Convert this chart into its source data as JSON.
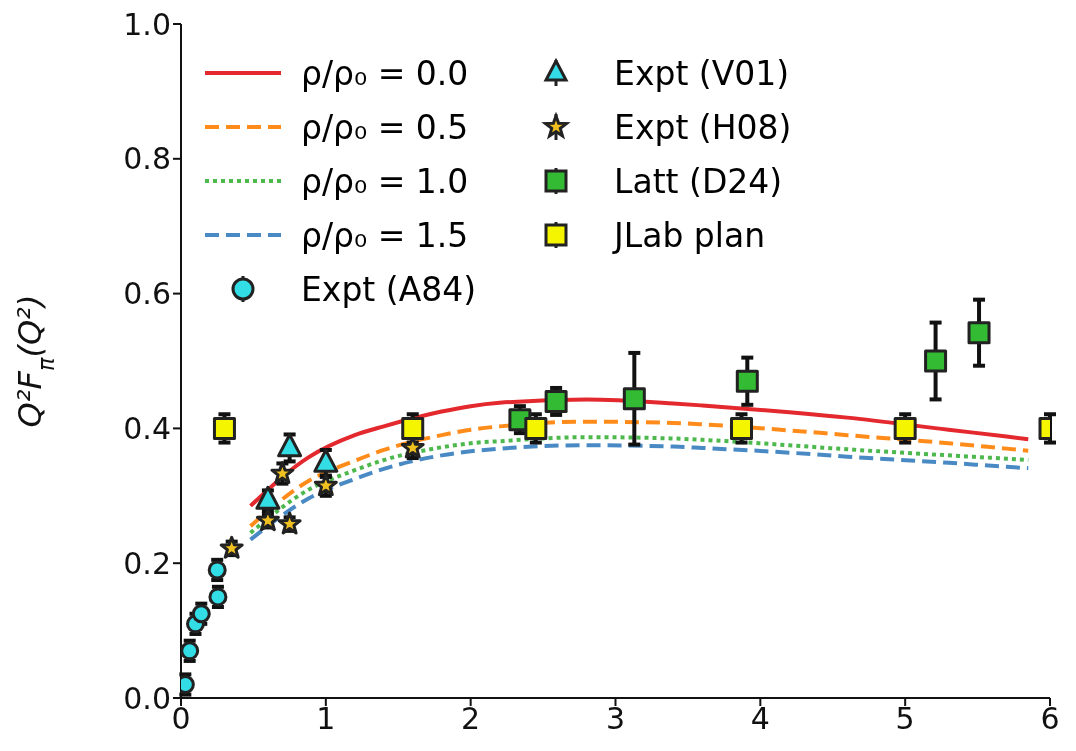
{
  "chart_data": {
    "type": "line",
    "ylabel": "Q²F$_{π}$(Q²)",
    "xlim": [
      0,
      6
    ],
    "xticks": [
      0,
      1,
      2,
      3,
      4,
      5,
      6
    ],
    "ylim": [
      0,
      1.0
    ],
    "yticks": [
      {
        "value": 0,
        "label": "0.0"
      },
      {
        "value": 0.2,
        "label": "0.2"
      },
      {
        "value": 0.4,
        "label": "0.4"
      },
      {
        "value": 0.6,
        "label": "0.6"
      },
      {
        "value": 0.8,
        "label": "0.8"
      },
      {
        "value": 1,
        "label": "1.0"
      }
    ],
    "legend": "top left",
    "series": [
      {
        "name": "ρ/ρ₀ = 0.0",
        "color": "#e3282e",
        "line_style": "solid",
        "x": [
          0.48,
          0.88,
          1.2,
          1.4,
          1.8,
          2.0,
          2.2,
          2.8,
          3.4,
          3.6,
          4.2,
          4.6,
          5.3,
          5.7,
          5.85
        ],
        "values": [
          0.285,
          0.357,
          0.39,
          0.403,
          0.425,
          0.433,
          0.438,
          0.443,
          0.437,
          0.434,
          0.424,
          0.416,
          0.398,
          0.388,
          0.384
        ]
      },
      {
        "name": "ρ/ρ₀ = 0.5",
        "color": "#ff8c1a",
        "line_style": "dashed",
        "x": [
          0.48,
          0.88,
          1.2,
          1.4,
          1.8,
          2.0,
          2.2,
          2.8,
          3.4,
          3.6,
          4.2,
          4.6,
          5.3,
          5.7,
          5.85
        ],
        "values": [
          0.255,
          0.322,
          0.352,
          0.368,
          0.39,
          0.398,
          0.403,
          0.41,
          0.408,
          0.406,
          0.397,
          0.39,
          0.378,
          0.37,
          0.367
        ]
      },
      {
        "name": "ρ/ρ₀ = 1.0",
        "color": "#4db84d",
        "line_style": "dotted",
        "x": [
          0.48,
          0.88,
          1.2,
          1.4,
          1.8,
          2.0,
          2.2,
          2.8,
          3.4,
          3.6,
          4.2,
          4.6,
          5.3,
          5.7,
          5.85
        ],
        "values": [
          0.245,
          0.309,
          0.338,
          0.353,
          0.372,
          0.378,
          0.381,
          0.387,
          0.385,
          0.383,
          0.375,
          0.369,
          0.36,
          0.355,
          0.353
        ]
      },
      {
        "name": "ρ/ρ₀ = 1.5",
        "color": "#4a8ac4",
        "line_style": "dashed",
        "x": [
          0.48,
          0.88,
          1.2,
          1.4,
          1.8,
          2.0,
          2.2,
          2.8,
          3.4,
          3.6,
          4.2,
          4.6,
          5.3,
          5.7,
          5.85
        ],
        "values": [
          0.235,
          0.296,
          0.325,
          0.34,
          0.36,
          0.366,
          0.37,
          0.375,
          0.373,
          0.371,
          0.364,
          0.358,
          0.349,
          0.343,
          0.341
        ]
      },
      {
        "name": "Expt (A84)",
        "type": "scatter",
        "color": "#33dde6",
        "marker": "circle",
        "x": [
          0.03,
          0.06,
          0.1,
          0.14,
          0.25,
          0.255
        ],
        "values": [
          0.02,
          0.07,
          0.11,
          0.125,
          0.19,
          0.15
        ],
        "errors": [
          0.015,
          0.015,
          0.015,
          0.015,
          0.015,
          0.015
        ]
      },
      {
        "name": "Expt (V01)",
        "type": "scatter",
        "color": "#33dde6",
        "marker": "triangle",
        "x": [
          0.6,
          0.75,
          1.0
        ],
        "values": [
          0.293,
          0.371,
          0.348
        ],
        "errors": [
          0.015,
          0.02,
          0.02
        ]
      },
      {
        "name": "Expt (H08)",
        "type": "scatter",
        "color": "#f0c020",
        "marker": "star",
        "x": [
          0.35,
          0.6,
          0.7,
          0.75,
          1.0,
          1.6
        ],
        "values": [
          0.222,
          0.263,
          0.333,
          0.258,
          0.315,
          0.371
        ],
        "errors": [
          0.01,
          0.01,
          0.015,
          0.01,
          0.015,
          0.015
        ]
      },
      {
        "name": "Latt (D24)",
        "type": "scatter",
        "color": "#33bb33",
        "marker": "square",
        "x": [
          2.34,
          2.59,
          3.13,
          3.91,
          5.21,
          5.51
        ],
        "values": [
          0.413,
          0.44,
          0.444,
          0.47,
          0.5,
          0.542
        ],
        "errors": [
          0.02,
          0.02,
          0.068,
          0.035,
          0.057,
          0.049
        ]
      },
      {
        "name": "JLab plan",
        "type": "scatter",
        "color": "#f5f500",
        "marker": "square",
        "x": [
          0.3,
          1.6,
          2.45,
          3.87,
          5.0,
          6.0
        ],
        "values": [
          0.4,
          0.4,
          0.4,
          0.4,
          0.4,
          0.4
        ],
        "errors": [
          0.021,
          0.021,
          0.021,
          0.021,
          0.021,
          0.021
        ]
      }
    ]
  }
}
